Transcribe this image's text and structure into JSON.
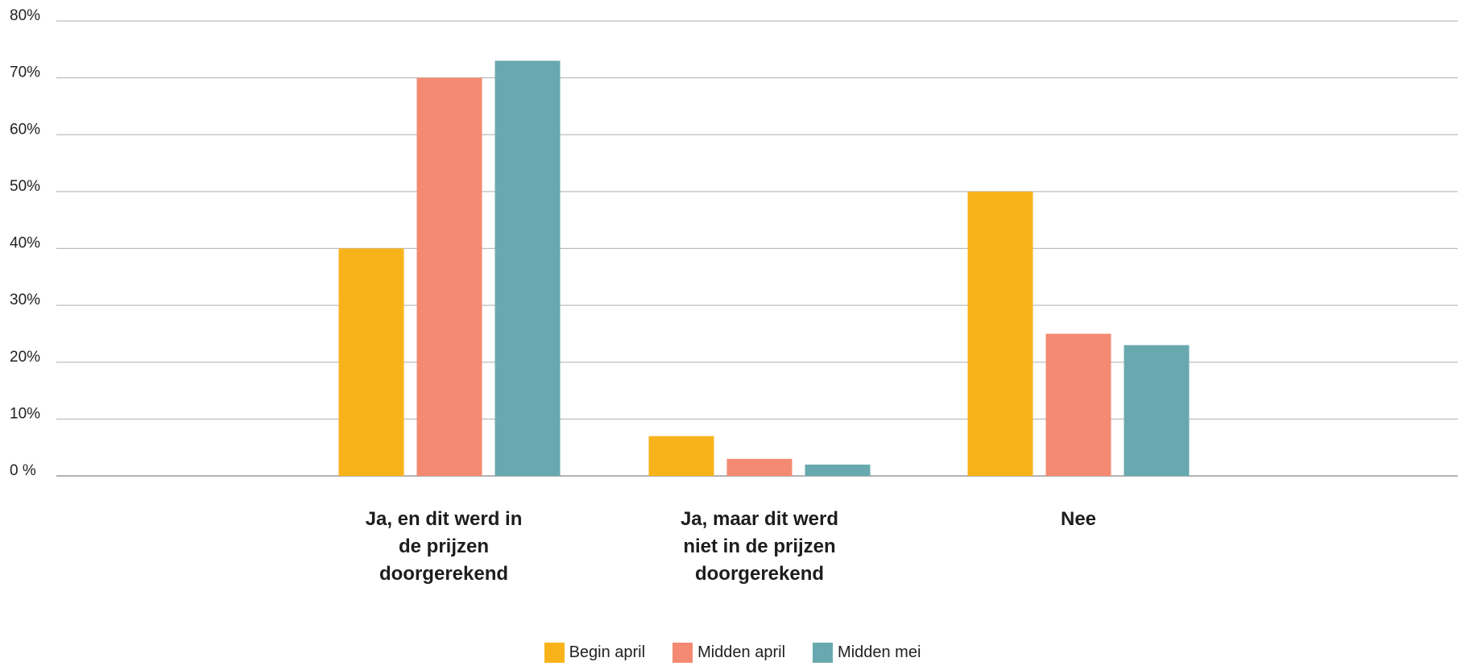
{
  "chart_data": {
    "type": "bar",
    "categories": [
      "Ja, en dit werd in de prijzen doorgerekend",
      "Ja, maar dit werd niet in de prijzen doorgerekend",
      "Nee"
    ],
    "category_lines": [
      [
        "Ja, en dit werd in",
        "de prijzen",
        "doorgerekend"
      ],
      [
        "Ja, maar dit werd",
        "niet in de prijzen",
        "doorgerekend"
      ],
      [
        "Nee"
      ]
    ],
    "series": [
      {
        "name": "Begin april",
        "color": "#F9B31A",
        "values": [
          40,
          7,
          50
        ]
      },
      {
        "name": "Midden april",
        "color": "#F48A72",
        "values": [
          70,
          3,
          25
        ]
      },
      {
        "name": "Midden mei",
        "color": "#67A9AF",
        "values": [
          73,
          2,
          23
        ]
      }
    ],
    "ylim": [
      0,
      80
    ],
    "yticks": [
      0,
      10,
      20,
      30,
      40,
      50,
      60,
      70,
      80
    ],
    "ytick_labels": [
      "0 %",
      "10%",
      "20%",
      "30%",
      "40%",
      "50%",
      "60%",
      "70%",
      "80%"
    ],
    "grid": true,
    "legend_position": "bottom-center",
    "title": "",
    "xlabel": "",
    "ylabel": ""
  }
}
